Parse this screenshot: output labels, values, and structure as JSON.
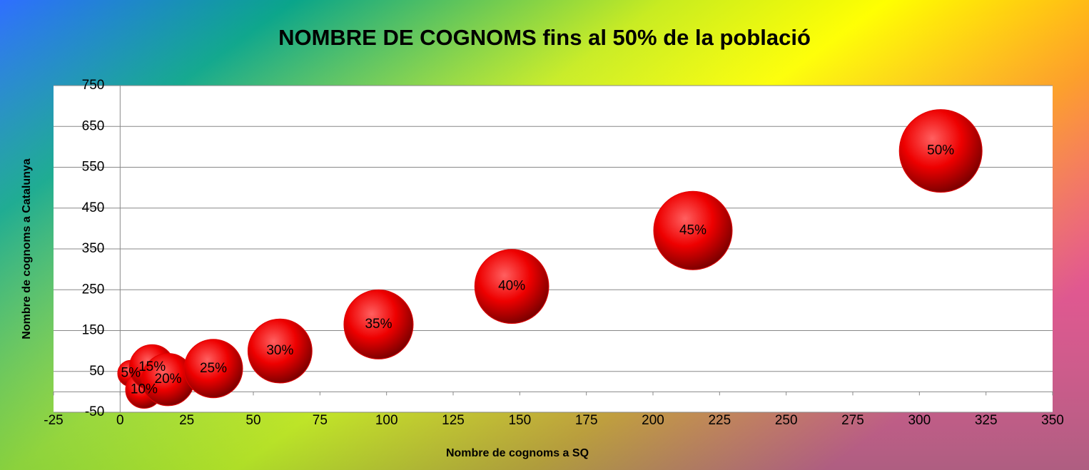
{
  "chart_data": {
    "type": "bubble",
    "title": "NOMBRE DE COGNOMS fins al 50% de la població",
    "x_label": "Nombre de cognoms a SQ",
    "y_label": "Nombre de cognoms a Catalunya",
    "series": [
      {
        "color": "#e00000",
        "x": [
          4,
          9,
          12,
          18,
          35,
          60,
          97,
          147,
          215,
          308
        ],
        "values": [
          45,
          5,
          60,
          30,
          57,
          100,
          165,
          258,
          395,
          590
        ],
        "sizes": [
          5,
          10,
          15,
          20,
          25,
          30,
          35,
          40,
          45,
          50
        ],
        "value_labels": [
          "5%",
          "10%",
          "15%",
          "20%",
          "25%",
          "30%",
          "35%",
          "40%",
          "45%",
          "50%"
        ]
      }
    ],
    "xlim": [
      -25,
      350
    ],
    "xticks": [
      -25,
      0,
      25,
      50,
      75,
      100,
      125,
      150,
      175,
      200,
      225,
      250,
      275,
      300,
      325,
      350
    ],
    "ylim": [
      -50,
      750
    ],
    "yticks": [
      -50,
      50,
      150,
      250,
      350,
      450,
      550,
      650,
      750
    ],
    "grid": true
  }
}
